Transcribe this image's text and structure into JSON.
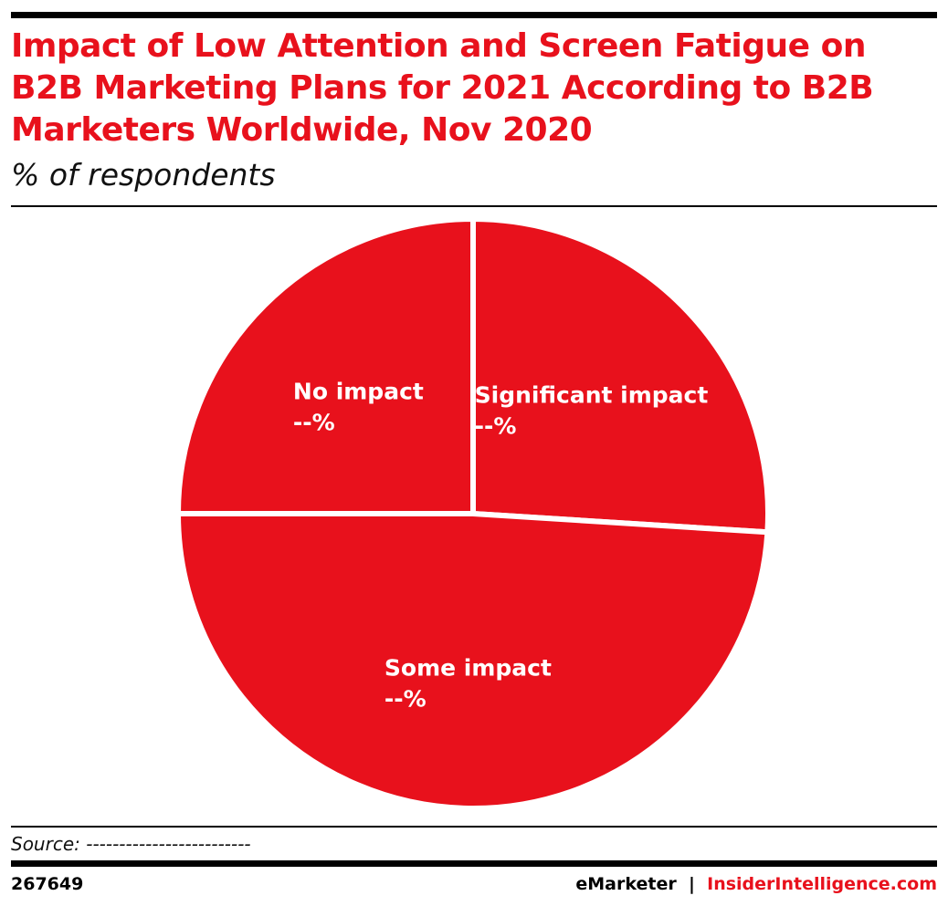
{
  "chart_data": {
    "type": "pie",
    "title": "Impact of Low Attention and Screen Fatigue on B2B Marketing Plans for 2021 According to B2B Marketers Worldwide, Nov 2020",
    "subtitle": "% of respondents",
    "categories": [
      "Significant impact",
      "Some impact",
      "No impact"
    ],
    "values": [
      26,
      49,
      25
    ],
    "value_labels": [
      "--%",
      "--%",
      "--%"
    ],
    "color": "#e8111c",
    "source": "Source: -------------------------",
    "chart_id": "267649",
    "footer_brand": "eMarketer",
    "footer_separator": "|",
    "footer_site": "InsiderIntelligence.com"
  }
}
